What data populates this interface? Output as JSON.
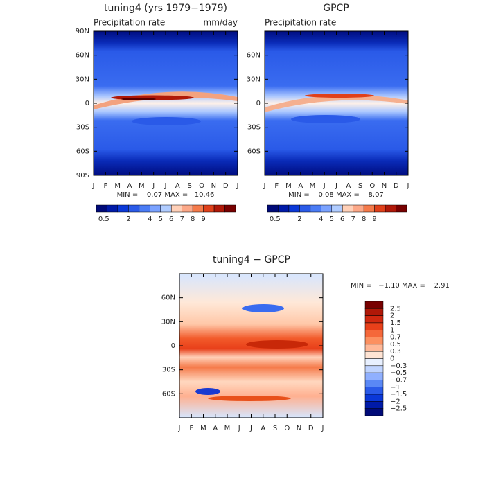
{
  "panels": [
    {
      "title": "tuning4 (yrs 1979−1979)",
      "subtitle": "Precipitation rate",
      "units": "mm/day",
      "y_labels": [
        "90N",
        "60N",
        "30N",
        "0",
        "30S",
        "60S",
        "90S"
      ],
      "x_labels": [
        "J",
        "F",
        "M",
        "A",
        "M",
        "J",
        "J",
        "A",
        "S",
        "O",
        "N",
        "D",
        "J"
      ],
      "min_max": "MIN =    0.07 MAX =   10.46"
    },
    {
      "title": "GPCP",
      "subtitle": "Precipitation rate",
      "y_labels": [
        "60N",
        "30N",
        "0",
        "30S",
        "60S"
      ],
      "x_labels": [
        "J",
        "F",
        "M",
        "A",
        "M",
        "J",
        "J",
        "A",
        "S",
        "O",
        "N",
        "D",
        "J"
      ],
      "min_max": "MIN =    0.08 MAX =    8.07"
    }
  ],
  "colorbar_labels": [
    "0.5",
    "2",
    "4",
    "5",
    "6",
    "7",
    "8",
    "9"
  ],
  "difference": {
    "title": "tuning4 − GPCP",
    "y_labels": [
      "60N",
      "30N",
      "0",
      "30S",
      "60S"
    ],
    "x_labels": [
      "J",
      "F",
      "M",
      "A",
      "M",
      "J",
      "J",
      "A",
      "S",
      "O",
      "N",
      "D",
      "J"
    ],
    "min_max": "MIN =   −1.10 MAX =    2.91",
    "colorbar_labels": [
      "2.5",
      "2",
      "1.5",
      "1",
      "0.7",
      "0.5",
      "0.3",
      "0",
      "−0.3",
      "−0.5",
      "−0.7",
      "−1",
      "−1.5",
      "−2",
      "−2.5"
    ]
  }
}
